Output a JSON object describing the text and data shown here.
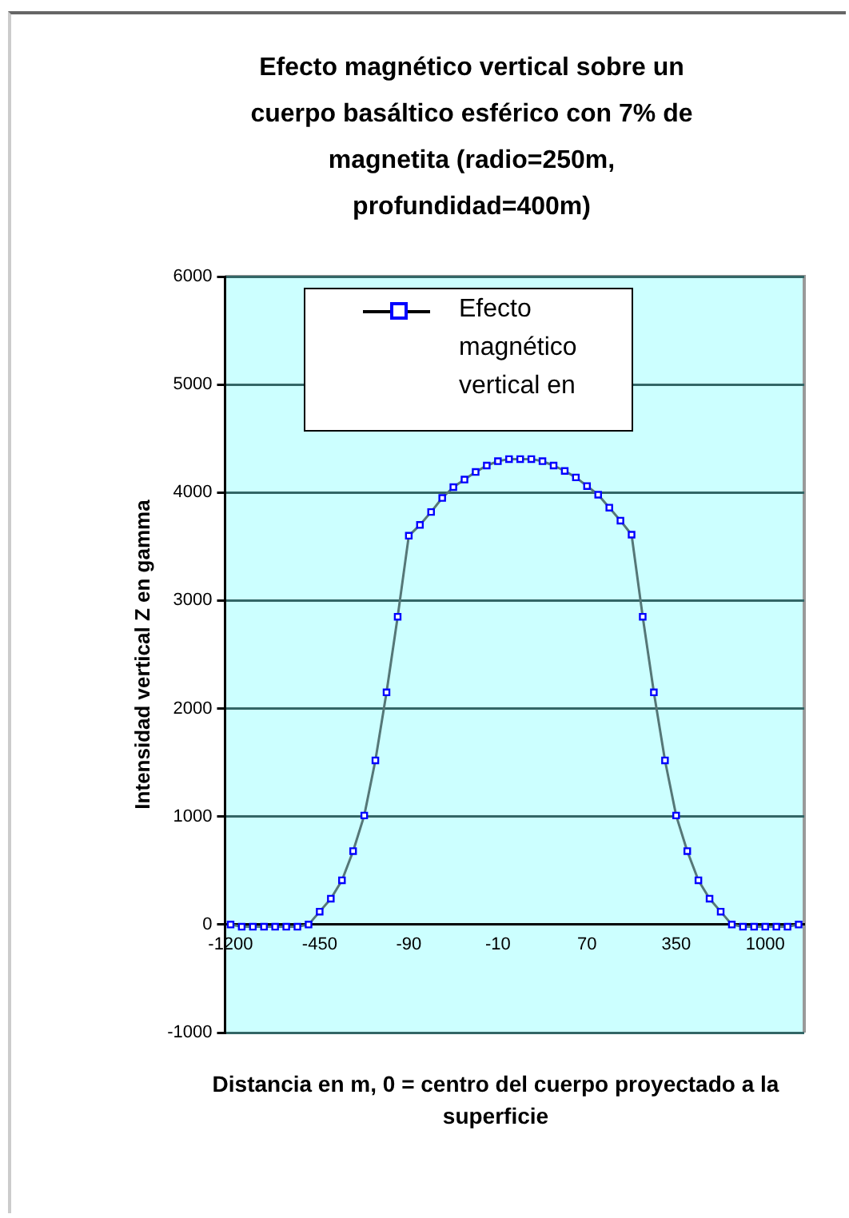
{
  "chart_data": {
    "type": "line",
    "title": "Efecto magnético vertical sobre un cuerpo basáltico esférico con 7% de magnetita (radio=250m, profundidad=400m)",
    "xlabel": "Distancia en m, 0 = centro del cuerpo proyectado a la superficie",
    "ylabel": "Intensidad vertical Z en gamma",
    "categories": [
      "-1200",
      null,
      null,
      null,
      null,
      null,
      null,
      null,
      "-450",
      null,
      null,
      null,
      null,
      null,
      null,
      null,
      "-90",
      null,
      null,
      null,
      null,
      null,
      null,
      null,
      "-10",
      null,
      null,
      null,
      null,
      null,
      null,
      null,
      "70",
      null,
      null,
      null,
      null,
      null,
      null,
      null,
      "350",
      null,
      null,
      null,
      null,
      null,
      null,
      null,
      "1000",
      null,
      null,
      null
    ],
    "series": [
      {
        "name": "Efecto magnético vertical en",
        "color": "#0000ff",
        "values": [
          0,
          -20,
          -20,
          -20,
          -20,
          -20,
          -20,
          0,
          120,
          240,
          410,
          680,
          1010,
          1520,
          2150,
          2850,
          3600,
          3700,
          3820,
          3950,
          4050,
          4120,
          4190,
          4250,
          4290,
          4310,
          4310,
          4310,
          4290,
          4250,
          4200,
          4140,
          4060,
          3980,
          3860,
          3740,
          3610,
          2850,
          2150,
          1520,
          1010,
          680,
          410,
          240,
          120,
          0,
          -20,
          -20,
          -20,
          -20,
          -20,
          0
        ]
      }
    ],
    "ylim": [
      -1000,
      6000
    ],
    "yticks": [
      -1000,
      0,
      1000,
      2000,
      3000,
      4000,
      5000,
      6000
    ],
    "grid": "y",
    "legend": "top",
    "marker": "square",
    "line_style": "solid"
  }
}
